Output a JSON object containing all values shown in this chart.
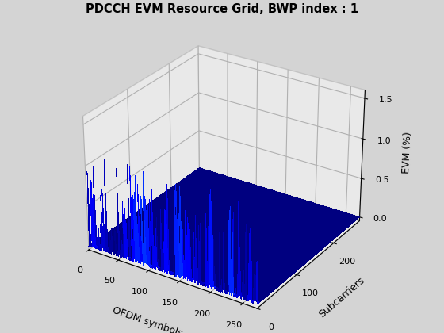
{
  "title": "PDCCH EVM Resource Grid, BWP index : 1",
  "xlabel": "OFDM symbols",
  "ylabel": "Subcarriers",
  "zlabel": "EVM (%)",
  "n_symbols": 273,
  "n_subcarriers": 275,
  "zlim": [
    -0.05,
    1.6
  ],
  "zticks": [
    0,
    0.5,
    1.0,
    1.5
  ],
  "x_ticks": [
    0,
    50,
    100,
    150,
    200,
    250
  ],
  "y_ticks": [
    0,
    100,
    200
  ],
  "spike_max": 1.2,
  "fig_color": "#d4d4d4",
  "elev": 28,
  "azim": -57
}
